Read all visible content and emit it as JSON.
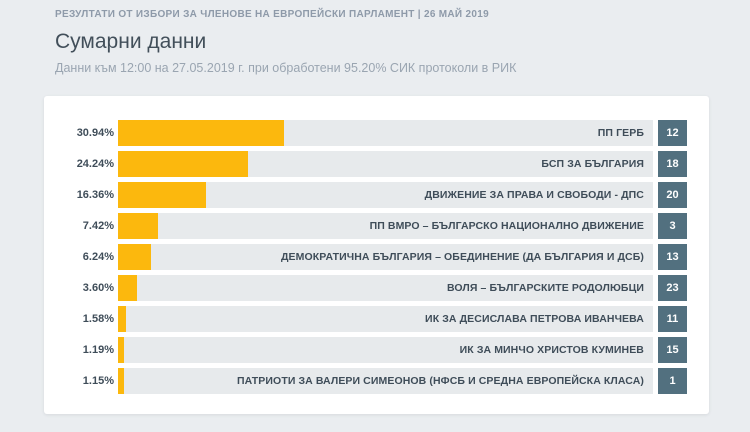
{
  "header": {
    "kicker": "РЕЗУЛТАТИ ОТ ИЗБОРИ ЗА ЧЛЕНОВЕ НА ЕВРОПЕЙСКИ ПАРЛАМЕНТ | 26 МАЙ 2019",
    "title": "Сумарни данни",
    "subtitle": "Данни към 12:00 на 27.05.2019 г. при обработени 95.20% СИК протоколи в РИК"
  },
  "colors": {
    "bar": "#fcb80d",
    "badge": "#52707f",
    "track": "#e7eaec",
    "page_bg": "#eaedf0",
    "card_bg": "#ffffff",
    "text_dark": "#3f4d59",
    "text_muted": "#9aa5b1"
  },
  "chart_data": {
    "type": "bar",
    "orientation": "horizontal",
    "title": "Сумарни данни",
    "xlabel": "",
    "ylabel": "",
    "unit": "%",
    "xlim": [
      0,
      100
    ],
    "grid": false,
    "legend": "none",
    "rows": [
      {
        "percent_label": "30.94%",
        "value": 30.94,
        "party": "ПП ГЕРБ",
        "number": "12"
      },
      {
        "percent_label": "24.24%",
        "value": 24.24,
        "party": "БСП ЗА БЪЛГАРИЯ",
        "number": "18"
      },
      {
        "percent_label": "16.36%",
        "value": 16.36,
        "party": "ДВИЖЕНИЕ ЗА ПРАВА И СВОБОДИ - ДПС",
        "number": "20"
      },
      {
        "percent_label": "7.42%",
        "value": 7.42,
        "party": "ПП ВМРО – БЪЛГАРСКО НАЦИОНАЛНО ДВИЖЕНИЕ",
        "number": "3"
      },
      {
        "percent_label": "6.24%",
        "value": 6.24,
        "party": "ДЕМОКРАТИЧНА БЪЛГАРИЯ – ОБЕДИНЕНИЕ (ДА БЪЛГАРИЯ И ДСБ)",
        "number": "13"
      },
      {
        "percent_label": "3.60%",
        "value": 3.6,
        "party": "ВОЛЯ – БЪЛГАРСКИТЕ РОДОЛЮБЦИ",
        "number": "23"
      },
      {
        "percent_label": "1.58%",
        "value": 1.58,
        "party": "ИК ЗА ДЕСИСЛАВА ПЕТРОВА ИВАНЧЕВА",
        "number": "11"
      },
      {
        "percent_label": "1.19%",
        "value": 1.19,
        "party": "ИК ЗА МИНЧО ХРИСТОВ КУМИНЕВ",
        "number": "15"
      },
      {
        "percent_label": "1.15%",
        "value": 1.15,
        "party": "ПАТРИОТИ ЗА ВАЛЕРИ СИМЕОНОВ (НФСБ И СРЕДНА ЕВРОПЕЙСКА КЛАСА)",
        "number": "1"
      }
    ]
  }
}
